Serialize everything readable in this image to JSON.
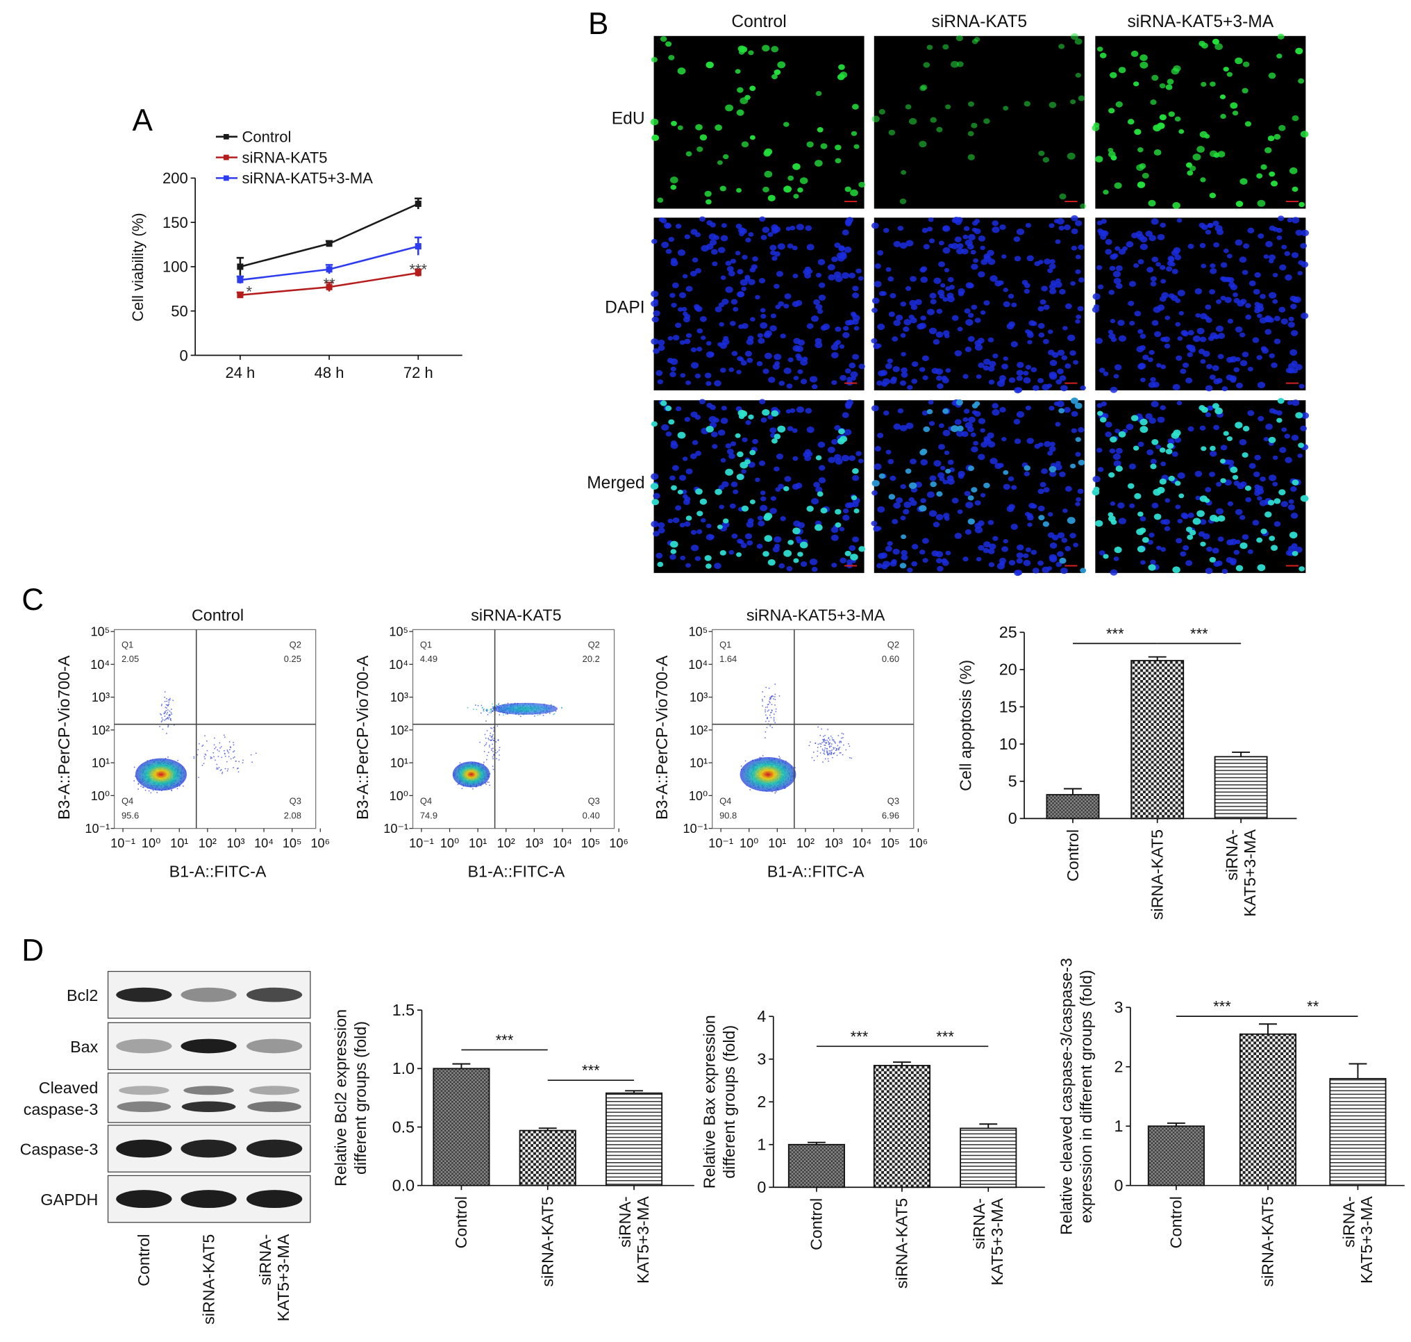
{
  "panel_letters": [
    "A",
    "B",
    "C",
    "D"
  ],
  "chart_data": [
    {
      "type": "line",
      "panel": "A",
      "ylabel": "Cell viability (%)",
      "categories": [
        "24 h",
        "48 h",
        "72 h"
      ],
      "yticks": [
        0,
        50,
        100,
        150,
        200
      ],
      "ylim": [
        0,
        200
      ],
      "legend_position": "top-left",
      "series": [
        {
          "name": "Control",
          "color": "#1a1a1a",
          "values": [
            100,
            126,
            171
          ],
          "errors": [
            10,
            3,
            6
          ]
        },
        {
          "name": "siRNA-KAT5",
          "color": "#b51d1d",
          "values": [
            68,
            77,
            93
          ],
          "errors": [
            3,
            5,
            4
          ]
        },
        {
          "name": "siRNA-KAT5+3-MA",
          "color": "#2e3cf0",
          "values": [
            85,
            97,
            123
          ],
          "errors": [
            4,
            5,
            10
          ]
        }
      ],
      "annotations": [
        {
          "text": "*",
          "category": "24 h",
          "y": 78
        },
        {
          "text": "**",
          "category": "48 h",
          "y": 87
        },
        {
          "text": "***",
          "category": "72 h",
          "y": 103
        }
      ]
    },
    {
      "type": "bar",
      "panel": "C",
      "ylabel": "Cell apoptosis (%)",
      "categories": [
        "Control",
        "siRNA-KAT5",
        "siRNA-\nKAT5+3-MA"
      ],
      "values": [
        3.2,
        21.2,
        8.3
      ],
      "errors": [
        0.8,
        0.5,
        0.6
      ],
      "yticks": [
        0,
        5,
        10,
        15,
        20,
        25
      ],
      "ylim": [
        0,
        25
      ],
      "significance": [
        {
          "from": 0,
          "to": 1,
          "text": "***",
          "y": 23.5
        },
        {
          "from": 1,
          "to": 2,
          "text": "***",
          "y": 23.5
        }
      ]
    },
    {
      "type": "bar",
      "panel": "D",
      "ylabel": [
        "Relative Bcl2 expression",
        "different groups (fold)"
      ],
      "categories": [
        "Control",
        "siRNA-KAT5",
        "siRNA-\nKAT5+3-MA"
      ],
      "values": [
        1.0,
        0.47,
        0.79
      ],
      "errors": [
        0.04,
        0.02,
        0.02
      ],
      "yticks": [
        "0.0",
        "0.5",
        "1.0",
        "1.5"
      ],
      "ylim": [
        0,
        1.5
      ],
      "significance": [
        {
          "from": 0,
          "to": 1,
          "text": "***",
          "y": 1.16
        },
        {
          "from": 1,
          "to": 2,
          "text": "***",
          "y": 0.9
        }
      ]
    },
    {
      "type": "bar",
      "panel": "D",
      "ylabel": [
        "Relative Bax expression",
        "different groups (fold)"
      ],
      "categories": [
        "Control",
        "siRNA-KAT5",
        "siRNA-\nKAT5+3-MA"
      ],
      "values": [
        1.0,
        2.85,
        1.38
      ],
      "errors": [
        0.05,
        0.08,
        0.1
      ],
      "yticks": [
        0,
        1,
        2,
        3,
        4
      ],
      "ylim": [
        0,
        4
      ],
      "significance": [
        {
          "from": 0,
          "to": 1,
          "text": "***",
          "y": 3.3
        },
        {
          "from": 1,
          "to": 2,
          "text": "***",
          "y": 3.3
        }
      ]
    },
    {
      "type": "bar",
      "panel": "D",
      "ylabel": [
        "Relative cleaved caspase-3/caspase-3",
        "expression in different groups (fold)"
      ],
      "categories": [
        "Control",
        "siRNA-KAT5",
        "siRNA-\nKAT5+3-MA"
      ],
      "values": [
        1.0,
        2.55,
        1.8
      ],
      "errors": [
        0.05,
        0.17,
        0.25
      ],
      "yticks": [
        0,
        1,
        2,
        3
      ],
      "ylim": [
        0,
        3
      ],
      "significance": [
        {
          "from": 0,
          "to": 1,
          "text": "***",
          "y": 2.85
        },
        {
          "from": 1,
          "to": 2,
          "text": "**",
          "y": 2.85
        }
      ]
    }
  ],
  "panel_b": {
    "columns": [
      "Control",
      "siRNA-KAT5",
      "siRNA-KAT5+3-MA"
    ],
    "rows": [
      "EdU",
      "DAPI",
      "Merged"
    ],
    "colors": {
      "edu": "#22e03a",
      "dapi": "#1a2de0",
      "merged_cyan": "#2ee6c8",
      "background": "#000000",
      "scale_bar": "#d82020"
    }
  },
  "flow_cytometry": {
    "xlabel": "B1-A::FITC-A",
    "ylabel": "B3-A::PerCP-Vio700-A",
    "xticks": [
      "10⁻¹",
      "10⁰",
      "10¹",
      "10²",
      "10³",
      "10⁴",
      "10⁵",
      "10⁶"
    ],
    "yticks": [
      "10⁻¹",
      "10⁰",
      "10¹",
      "10²",
      "10³",
      "10⁴",
      "10⁵"
    ],
    "plots": [
      {
        "title": "Control",
        "Q1": "2.05",
        "Q2": "0.25",
        "Q3": "2.08",
        "Q4": "95.6"
      },
      {
        "title": "siRNA-KAT5",
        "Q1": "4.49",
        "Q2": "20.2",
        "Q3": "0.40",
        "Q4": "74.9"
      },
      {
        "title": "siRNA-KAT5+3-MA",
        "Q1": "1.64",
        "Q2": "0.60",
        "Q3": "6.96",
        "Q4": "90.8"
      }
    ],
    "quadrant_labels": [
      "Q1",
      "Q2",
      "Q3",
      "Q4"
    ]
  },
  "western_blot": {
    "bands": [
      "Bcl2",
      "Bax",
      "Cleaved\ncaspase-3",
      "Caspase-3",
      "GAPDH"
    ],
    "lanes": [
      "Control",
      "siRNA-KAT5",
      "siRNA-\nKAT5+3-MA"
    ]
  }
}
